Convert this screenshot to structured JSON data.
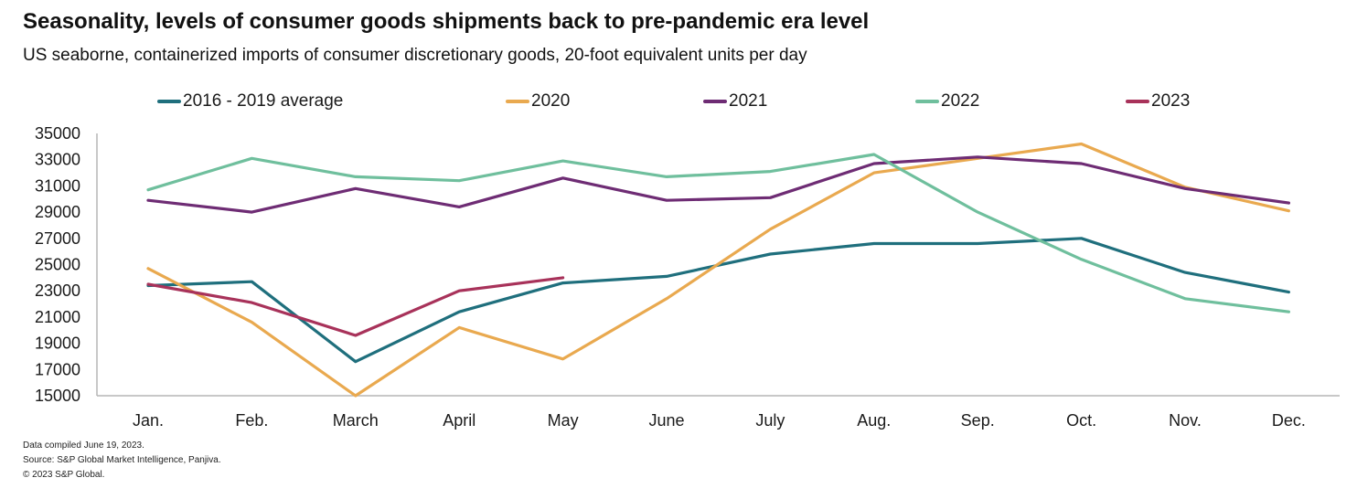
{
  "header": {
    "title": "Seasonality, levels of consumer goods shipments back to pre-pandemic era level",
    "subtitle": "US seaborne, containerized imports of consumer discretionary goods, 20-foot equivalent units per day"
  },
  "footnotes": [
    "Data compiled June 19, 2023.",
    "Source: S&P Global Market Intelligence, Panjiva.",
    "© 2023 S&P Global."
  ],
  "chart_data": {
    "type": "line",
    "title": "Seasonality, levels of consumer goods shipments back to pre-pandemic era level",
    "subtitle": "US seaborne, containerized imports of consumer discretionary goods, 20-foot equivalent units per day",
    "xlabel": "",
    "ylabel": "",
    "categories": [
      "Jan.",
      "Feb.",
      "March",
      "April",
      "May",
      "June",
      "July",
      "Aug.",
      "Sep.",
      "Oct.",
      "Nov.",
      "Dec."
    ],
    "ylim": [
      15000,
      35000
    ],
    "yticks": [
      "15000",
      "17000",
      "19000",
      "21000",
      "23000",
      "25000",
      "27000",
      "29000",
      "31000",
      "33000",
      "35000"
    ],
    "grid": false,
    "legend_position": "top",
    "series": [
      {
        "name": "2016 - 2019 average",
        "color": "#1f6f7d",
        "values": [
          23400,
          23700,
          17600,
          21400,
          23600,
          24100,
          25800,
          26600,
          26600,
          27000,
          24400,
          22900
        ]
      },
      {
        "name": "2020",
        "color": "#e9a94f",
        "values": [
          24700,
          20600,
          15000,
          20200,
          17800,
          22400,
          27700,
          32000,
          33100,
          34200,
          30900,
          29100
        ]
      },
      {
        "name": "2021",
        "color": "#6e2c74",
        "values": [
          29900,
          29000,
          30800,
          29400,
          31600,
          29900,
          30100,
          32700,
          33200,
          32700,
          30800,
          29700
        ]
      },
      {
        "name": "2022",
        "color": "#6fbf9d",
        "values": [
          30700,
          33100,
          31700,
          31400,
          32900,
          31700,
          32100,
          33400,
          29000,
          25400,
          22400,
          21400
        ]
      },
      {
        "name": "2023",
        "color": "#a8325a",
        "values": [
          23500,
          22100,
          19600,
          23000,
          24000,
          null,
          null,
          null,
          null,
          null,
          null,
          null
        ]
      }
    ]
  }
}
